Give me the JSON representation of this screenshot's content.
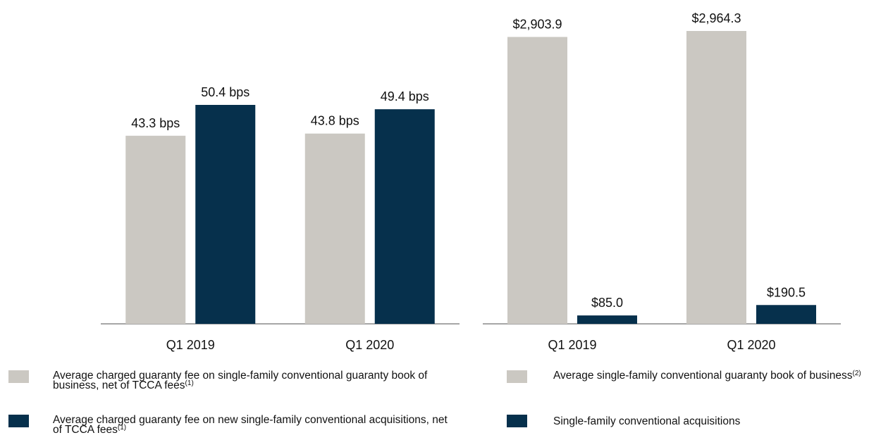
{
  "chart_data": [
    {
      "type": "bar",
      "categories": [
        "Q1 2019",
        "Q1 2020"
      ],
      "series": [
        {
          "name": "Average charged guaranty fee on single-family conventional guaranty book of business, net of TCCA fees",
          "footnote_ref": "(1)",
          "color": "#cbc8c2",
          "values": [
            43.3,
            43.8
          ],
          "value_labels": [
            "43.3 bps",
            "43.8 bps"
          ]
        },
        {
          "name": "Average charged guaranty fee on new single-family conventional acquisitions, net of TCCA fees",
          "footnote_ref": "(1)",
          "color": "#06304c",
          "values": [
            50.4,
            49.4
          ],
          "value_labels": [
            "50.4 bps",
            "49.4 bps"
          ]
        }
      ]
    },
    {
      "type": "bar",
      "categories": [
        "Q1 2019",
        "Q1 2020"
      ],
      "series": [
        {
          "name": "Average single-family conventional guaranty book of business",
          "footnote_ref": "(2)",
          "color": "#cbc8c2",
          "values": [
            2903.9,
            2964.3
          ],
          "value_labels": [
            "$2,903.9",
            "$2,964.3"
          ]
        },
        {
          "name": "Single-family conventional acquisitions",
          "color": "#06304c",
          "values": [
            85.0,
            190.5
          ],
          "value_labels": [
            "$85.0",
            "$190.5"
          ]
        }
      ]
    }
  ]
}
